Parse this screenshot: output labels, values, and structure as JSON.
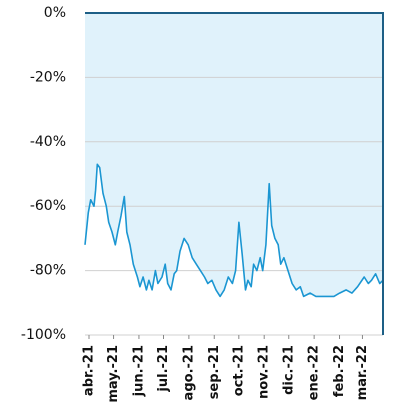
{
  "chart_data": {
    "type": "area-line",
    "color": "#1b96d2",
    "fill": "#e0f2fb",
    "x": [
      0,
      4,
      7,
      11,
      13,
      15,
      18,
      22,
      26,
      29,
      33,
      37,
      40,
      44,
      48,
      51,
      55,
      59,
      64,
      67,
      71,
      75,
      78,
      82,
      86,
      89,
      94,
      98,
      101,
      105,
      109,
      112,
      116,
      121,
      126,
      131,
      136,
      141,
      146,
      150,
      155,
      160,
      165,
      170,
      175,
      180,
      184,
      188,
      192,
      196,
      199,
      203,
      206,
      210,
      214,
      217,
      221,
      225,
      228,
      232,
      236,
      239,
      243,
      248,
      253,
      258,
      263,
      267,
      275,
      282,
      289,
      297,
      304,
      311,
      319,
      326,
      333,
      341,
      346,
      350,
      355,
      360,
      364
    ],
    "values": [
      -72,
      -62,
      -58,
      -60,
      -55,
      -47,
      -48,
      -56,
      -60,
      -65,
      -68,
      -72,
      -68,
      -63,
      -57,
      -68,
      -72,
      -78,
      -82,
      -85,
      -82,
      -86,
      -83,
      -86,
      -80,
      -84,
      -82,
      -78,
      -84,
      -86,
      -81,
      -80,
      -74,
      -70,
      -72,
      -76,
      -78,
      -80,
      -82,
      -84,
      -83,
      -86,
      -88,
      -86,
      -82,
      -84,
      -80,
      -65,
      -75,
      -86,
      -83,
      -85,
      -78,
      -80,
      -76,
      -80,
      -72,
      -53,
      -66,
      -70,
      -72,
      -78,
      -76,
      -80,
      -84,
      -86,
      -85,
      -88,
      -87,
      -88,
      -88,
      -88,
      -88,
      -87,
      -86,
      -87,
      -85,
      -82,
      -84,
      -83,
      -81,
      -84,
      -83
    ],
    "xlim": [
      0,
      364
    ],
    "xticks": [
      {
        "value": 0,
        "label": "abr.-21"
      },
      {
        "value": 30,
        "label": "may.-21"
      },
      {
        "value": 61,
        "label": "jun.-21"
      },
      {
        "value": 91,
        "label": "jul.-21"
      },
      {
        "value": 122,
        "label": "ago.-21"
      },
      {
        "value": 153,
        "label": "sep.-21"
      },
      {
        "value": 183,
        "label": "oct.-21"
      },
      {
        "value": 214,
        "label": "nov.-21"
      },
      {
        "value": 244,
        "label": "dic.-21"
      },
      {
        "value": 275,
        "label": "ene.-22"
      },
      {
        "value": 306,
        "label": "feb.-22"
      },
      {
        "value": 334,
        "label": "mar.-22"
      }
    ],
    "ylim": [
      -100,
      0
    ],
    "yticks": [
      {
        "value": 0,
        "label": "0%"
      },
      {
        "value": -20,
        "label": "-20%"
      },
      {
        "value": -40,
        "label": "-40%"
      },
      {
        "value": -60,
        "label": "-60%"
      },
      {
        "value": -80,
        "label": "-80%"
      },
      {
        "value": -100,
        "label": "-100%"
      }
    ],
    "grid": true
  }
}
